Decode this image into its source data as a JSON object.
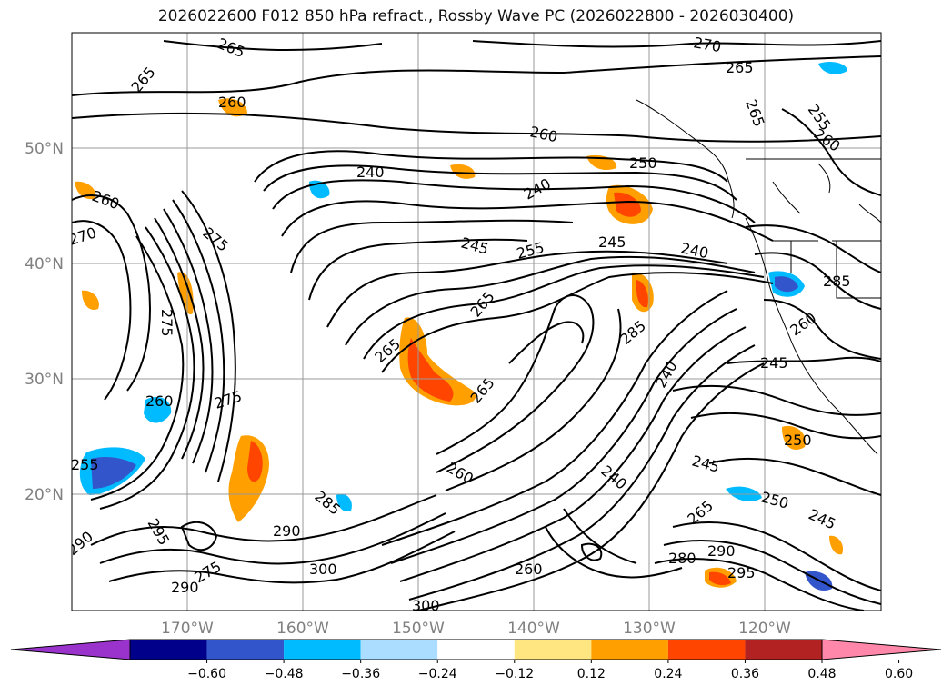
{
  "title": "2026022600 F012 850 hPa refract., Rossby Wave PC (2026022800 - 2026030400)",
  "map": {
    "lat_labels": [
      "50°N",
      "40°N",
      "30°N",
      "20°N"
    ],
    "lon_labels": [
      "170°W",
      "160°W",
      "150°W",
      "140°W",
      "130°W",
      "120°W"
    ],
    "contour_labels": [
      "265",
      "265",
      "260",
      "270",
      "265",
      "265",
      "255",
      "260",
      "260",
      "240",
      "240",
      "250",
      "245",
      "255",
      "245",
      "240",
      "265",
      "285",
      "275",
      "270",
      "260",
      "275",
      "260",
      "265",
      "265",
      "275",
      "260",
      "255",
      "260",
      "245",
      "240",
      "240",
      "250",
      "245",
      "250",
      "245",
      "285",
      "265",
      "280",
      "290",
      "295",
      "290",
      "300",
      "300",
      "290",
      "275",
      "290",
      "295",
      "260",
      "285"
    ]
  },
  "colorbar": {
    "colors": [
      "#9933cc",
      "#00008b",
      "#3355cc",
      "#00bbff",
      "#aaddff",
      "#ffffff",
      "#ffe680",
      "#ffa000",
      "#ff4500",
      "#b22222",
      "#ff88aa"
    ],
    "tick_labels": [
      "−0.60",
      "−0.48",
      "−0.36",
      "−0.24",
      "−0.12",
      "0.12",
      "0.24",
      "0.36",
      "0.48",
      "0.60"
    ]
  }
}
